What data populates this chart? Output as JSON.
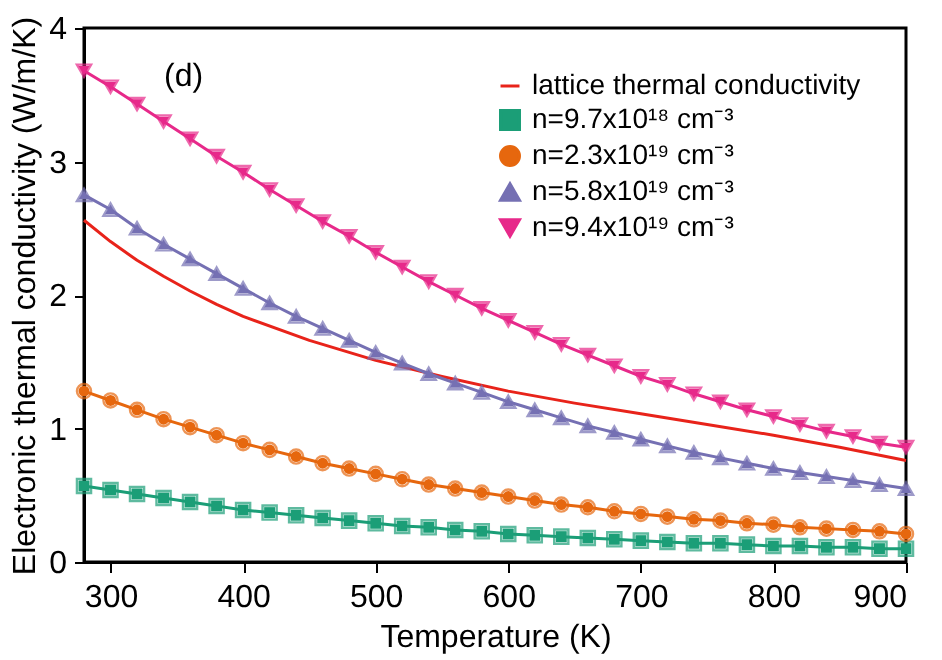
{
  "chart_data": {
    "type": "line",
    "xlabel": "Temperature (K)",
    "ylabel": "Electronic thermal conductivity (W/m/K)",
    "x": [
      280,
      300,
      320,
      340,
      360,
      380,
      400,
      420,
      440,
      460,
      480,
      500,
      520,
      540,
      560,
      580,
      600,
      620,
      640,
      660,
      680,
      700,
      720,
      740,
      760,
      780,
      800,
      820,
      840,
      860,
      880,
      900
    ],
    "series": [
      {
        "name": "lattice thermal conductivity",
        "color": "#e8231a",
        "marker": "none",
        "x": [
          280,
          300,
          320,
          340,
          360,
          380,
          400,
          450,
          500,
          550,
          600,
          650,
          700,
          750,
          800,
          850,
          900
        ],
        "values": [
          2.56,
          2.4,
          2.26,
          2.14,
          2.03,
          1.93,
          1.84,
          1.66,
          1.51,
          1.39,
          1.28,
          1.19,
          1.11,
          1.03,
          0.95,
          0.86,
          0.76
        ]
      },
      {
        "name": "n=9.7x10¹⁸ cm⁻³",
        "color": "#1b9e77",
        "marker": "square",
        "values": [
          0.57,
          0.54,
          0.51,
          0.48,
          0.45,
          0.42,
          0.39,
          0.37,
          0.35,
          0.33,
          0.31,
          0.29,
          0.27,
          0.26,
          0.24,
          0.23,
          0.21,
          0.2,
          0.19,
          0.18,
          0.17,
          0.16,
          0.15,
          0.14,
          0.14,
          0.13,
          0.12,
          0.12,
          0.11,
          0.11,
          0.1,
          0.1
        ]
      },
      {
        "name": "n=2.3x10¹⁹ cm⁻³",
        "color": "#e6670e",
        "marker": "circle",
        "values": [
          1.28,
          1.21,
          1.14,
          1.07,
          1.01,
          0.95,
          0.89,
          0.84,
          0.79,
          0.74,
          0.7,
          0.66,
          0.62,
          0.58,
          0.55,
          0.52,
          0.49,
          0.46,
          0.43,
          0.41,
          0.38,
          0.36,
          0.34,
          0.32,
          0.31,
          0.29,
          0.28,
          0.26,
          0.25,
          0.24,
          0.23,
          0.21
        ]
      },
      {
        "name": "n=5.8x10¹⁹ cm⁻³",
        "color": "#7570b3",
        "marker": "triangle",
        "values": [
          2.75,
          2.64,
          2.5,
          2.38,
          2.27,
          2.16,
          2.05,
          1.94,
          1.84,
          1.75,
          1.66,
          1.57,
          1.49,
          1.41,
          1.34,
          1.27,
          1.2,
          1.14,
          1.08,
          1.02,
          0.97,
          0.92,
          0.87,
          0.82,
          0.78,
          0.74,
          0.7,
          0.67,
          0.64,
          0.61,
          0.58,
          0.55
        ]
      },
      {
        "name": "n=9.4x10¹⁹ cm⁻³",
        "color": "#e7298a",
        "marker": "triangle-down",
        "values": [
          3.68,
          3.56,
          3.43,
          3.3,
          3.17,
          3.04,
          2.92,
          2.79,
          2.67,
          2.55,
          2.44,
          2.32,
          2.21,
          2.1,
          2.0,
          1.9,
          1.81,
          1.72,
          1.63,
          1.55,
          1.47,
          1.39,
          1.33,
          1.26,
          1.2,
          1.14,
          1.09,
          1.03,
          0.98,
          0.94,
          0.89,
          0.86
        ]
      }
    ],
    "xlim": [
      280,
      900
    ],
    "xticks": [
      300,
      400,
      500,
      600,
      700,
      800,
      900
    ],
    "ylim": [
      0,
      4
    ],
    "yticks": [
      0,
      1,
      2,
      3,
      4
    ],
    "annotations": [
      "(d)"
    ],
    "grid": false,
    "legend": "top right",
    "line_style": "solid"
  }
}
